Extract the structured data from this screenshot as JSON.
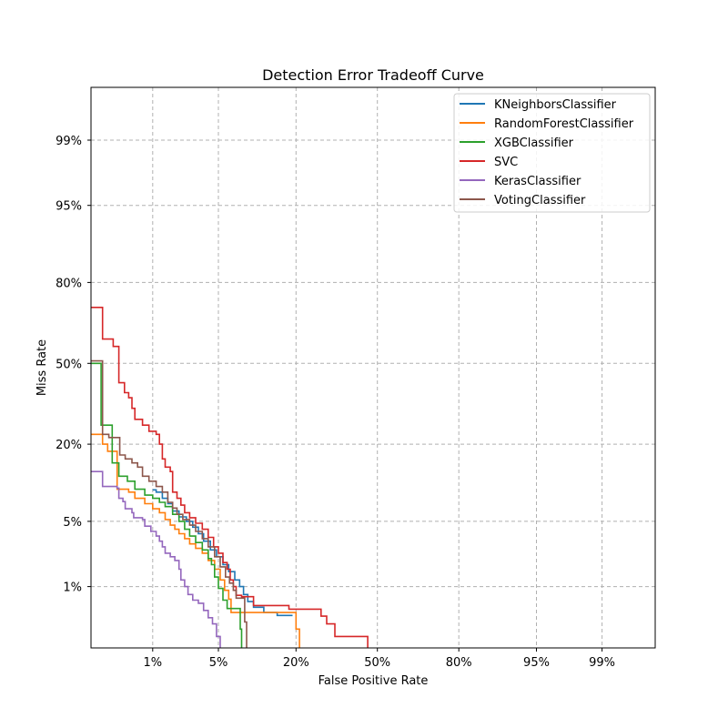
{
  "chart_data": {
    "type": "line",
    "title": "Detection Error Tradeoff Curve",
    "xlabel": "False Positive Rate",
    "ylabel": "Miss Rate",
    "x_scale": "probit",
    "y_scale": "probit",
    "xlim": [
      0.0015,
      0.998
    ],
    "ylim": [
      0.0015,
      0.998
    ],
    "grid": true,
    "legend_position": "top-right",
    "x_ticks": [
      {
        "value": 0.01,
        "label": "1%"
      },
      {
        "value": 0.05,
        "label": "5%"
      },
      {
        "value": 0.2,
        "label": "20%"
      },
      {
        "value": 0.5,
        "label": "50%"
      },
      {
        "value": 0.8,
        "label": "80%"
      },
      {
        "value": 0.95,
        "label": "95%"
      },
      {
        "value": 0.99,
        "label": "99%"
      }
    ],
    "y_ticks": [
      {
        "value": 0.01,
        "label": "1%"
      },
      {
        "value": 0.05,
        "label": "5%"
      },
      {
        "value": 0.2,
        "label": "20%"
      },
      {
        "value": 0.5,
        "label": "50%"
      },
      {
        "value": 0.8,
        "label": "80%"
      },
      {
        "value": 0.95,
        "label": "95%"
      },
      {
        "value": 0.99,
        "label": "99%"
      }
    ],
    "series": [
      {
        "name": "KNeighborsClassifier",
        "color": "#1f77b4",
        "points": [
          [
            0.01,
            0.094
          ],
          [
            0.011,
            0.09
          ],
          [
            0.013,
            0.08
          ],
          [
            0.015,
            0.072
          ],
          [
            0.017,
            0.062
          ],
          [
            0.02,
            0.055
          ],
          [
            0.024,
            0.05
          ],
          [
            0.028,
            0.044
          ],
          [
            0.032,
            0.038
          ],
          [
            0.036,
            0.032
          ],
          [
            0.042,
            0.026
          ],
          [
            0.048,
            0.022
          ],
          [
            0.055,
            0.018
          ],
          [
            0.062,
            0.015
          ],
          [
            0.07,
            0.012
          ],
          [
            0.077,
            0.01
          ],
          [
            0.083,
            0.008
          ],
          [
            0.09,
            0.0065
          ],
          [
            0.1,
            0.0055
          ],
          [
            0.12,
            0.0047
          ],
          [
            0.15,
            0.0043
          ],
          [
            0.19,
            0.0043
          ]
        ]
      },
      {
        "name": "RandomForestClassifier",
        "color": "#ff7f0e",
        "points": [
          [
            0.0015,
            0.23
          ],
          [
            0.002,
            0.23
          ],
          [
            0.0022,
            0.2
          ],
          [
            0.0026,
            0.18
          ],
          [
            0.0035,
            0.095
          ],
          [
            0.005,
            0.09
          ],
          [
            0.006,
            0.08
          ],
          [
            0.008,
            0.072
          ],
          [
            0.01,
            0.065
          ],
          [
            0.012,
            0.06
          ],
          [
            0.014,
            0.052
          ],
          [
            0.016,
            0.046
          ],
          [
            0.018,
            0.042
          ],
          [
            0.02,
            0.038
          ],
          [
            0.023,
            0.034
          ],
          [
            0.026,
            0.03
          ],
          [
            0.03,
            0.027
          ],
          [
            0.035,
            0.024
          ],
          [
            0.04,
            0.02
          ],
          [
            0.046,
            0.016
          ],
          [
            0.052,
            0.012
          ],
          [
            0.057,
            0.009
          ],
          [
            0.062,
            0.007
          ],
          [
            0.065,
            0.0047
          ],
          [
            0.1,
            0.0047
          ],
          [
            0.18,
            0.0047
          ],
          [
            0.2,
            0.0028
          ],
          [
            0.21,
            0.0015
          ]
        ]
      },
      {
        "name": "XGBClassifier",
        "color": "#2ca02c",
        "points": [
          [
            0.0015,
            0.5
          ],
          [
            0.002,
            0.5
          ],
          [
            0.0021,
            0.26
          ],
          [
            0.0028,
            0.26
          ],
          [
            0.003,
            0.15
          ],
          [
            0.0037,
            0.12
          ],
          [
            0.0048,
            0.11
          ],
          [
            0.006,
            0.095
          ],
          [
            0.008,
            0.085
          ],
          [
            0.01,
            0.08
          ],
          [
            0.012,
            0.074
          ],
          [
            0.014,
            0.068
          ],
          [
            0.017,
            0.058
          ],
          [
            0.02,
            0.05
          ],
          [
            0.023,
            0.042
          ],
          [
            0.026,
            0.036
          ],
          [
            0.03,
            0.031
          ],
          [
            0.035,
            0.026
          ],
          [
            0.04,
            0.021
          ],
          [
            0.043,
            0.018
          ],
          [
            0.046,
            0.013
          ],
          [
            0.05,
            0.0095
          ],
          [
            0.055,
            0.0068
          ],
          [
            0.06,
            0.0053
          ],
          [
            0.07,
            0.0053
          ],
          [
            0.075,
            0.0053
          ],
          [
            0.078,
            0.0028
          ],
          [
            0.08,
            0.0015
          ]
        ]
      },
      {
        "name": "SVC",
        "color": "#d62728",
        "points": [
          [
            0.0015,
            0.72
          ],
          [
            0.0021,
            0.72
          ],
          [
            0.0022,
            0.6
          ],
          [
            0.003,
            0.6
          ],
          [
            0.0031,
            0.57
          ],
          [
            0.0036,
            0.57
          ],
          [
            0.0037,
            0.42
          ],
          [
            0.0043,
            0.42
          ],
          [
            0.0044,
            0.38
          ],
          [
            0.005,
            0.36
          ],
          [
            0.0055,
            0.32
          ],
          [
            0.006,
            0.28
          ],
          [
            0.0075,
            0.26
          ],
          [
            0.009,
            0.24
          ],
          [
            0.011,
            0.23
          ],
          [
            0.012,
            0.2
          ],
          [
            0.013,
            0.16
          ],
          [
            0.014,
            0.14
          ],
          [
            0.016,
            0.13
          ],
          [
            0.017,
            0.09
          ],
          [
            0.019,
            0.08
          ],
          [
            0.021,
            0.07
          ],
          [
            0.023,
            0.06
          ],
          [
            0.026,
            0.054
          ],
          [
            0.03,
            0.048
          ],
          [
            0.035,
            0.042
          ],
          [
            0.04,
            0.035
          ],
          [
            0.045,
            0.028
          ],
          [
            0.05,
            0.024
          ],
          [
            0.055,
            0.019
          ],
          [
            0.06,
            0.016
          ],
          [
            0.064,
            0.012
          ],
          [
            0.068,
            0.01
          ],
          [
            0.072,
            0.0078
          ],
          [
            0.08,
            0.0075
          ],
          [
            0.1,
            0.0058
          ],
          [
            0.15,
            0.0058
          ],
          [
            0.18,
            0.0052
          ],
          [
            0.26,
            0.0052
          ],
          [
            0.28,
            0.0042
          ],
          [
            0.3,
            0.0033
          ],
          [
            0.32,
            0.0033
          ],
          [
            0.33,
            0.0022
          ],
          [
            0.45,
            0.0022
          ],
          [
            0.46,
            0.0015
          ]
        ]
      },
      {
        "name": "KerasClassifier",
        "color": "#9467bd",
        "points": [
          [
            0.0015,
            0.13
          ],
          [
            0.002,
            0.13
          ],
          [
            0.0022,
            0.1
          ],
          [
            0.0035,
            0.097
          ],
          [
            0.0037,
            0.08
          ],
          [
            0.0042,
            0.075
          ],
          [
            0.0045,
            0.065
          ],
          [
            0.0055,
            0.06
          ],
          [
            0.0058,
            0.054
          ],
          [
            0.0075,
            0.052
          ],
          [
            0.008,
            0.045
          ],
          [
            0.0095,
            0.04
          ],
          [
            0.011,
            0.036
          ],
          [
            0.012,
            0.032
          ],
          [
            0.013,
            0.028
          ],
          [
            0.014,
            0.024
          ],
          [
            0.016,
            0.022
          ],
          [
            0.018,
            0.02
          ],
          [
            0.02,
            0.016
          ],
          [
            0.021,
            0.012
          ],
          [
            0.023,
            0.01
          ],
          [
            0.025,
            0.008
          ],
          [
            0.028,
            0.0068
          ],
          [
            0.032,
            0.0062
          ],
          [
            0.036,
            0.005
          ],
          [
            0.04,
            0.004
          ],
          [
            0.044,
            0.0033
          ],
          [
            0.048,
            0.0022
          ],
          [
            0.052,
            0.0015
          ]
        ]
      },
      {
        "name": "VotingClassifier",
        "color": "#8c564b",
        "points": [
          [
            0.0015,
            0.51
          ],
          [
            0.0021,
            0.51
          ],
          [
            0.0022,
            0.23
          ],
          [
            0.0027,
            0.22
          ],
          [
            0.0037,
            0.22
          ],
          [
            0.0038,
            0.17
          ],
          [
            0.0045,
            0.16
          ],
          [
            0.0055,
            0.15
          ],
          [
            0.0065,
            0.14
          ],
          [
            0.0075,
            0.12
          ],
          [
            0.009,
            0.11
          ],
          [
            0.011,
            0.1
          ],
          [
            0.013,
            0.09
          ],
          [
            0.015,
            0.074
          ],
          [
            0.017,
            0.066
          ],
          [
            0.019,
            0.058
          ],
          [
            0.022,
            0.052
          ],
          [
            0.026,
            0.046
          ],
          [
            0.03,
            0.04
          ],
          [
            0.035,
            0.034
          ],
          [
            0.04,
            0.028
          ],
          [
            0.046,
            0.022
          ],
          [
            0.052,
            0.017
          ],
          [
            0.058,
            0.013
          ],
          [
            0.063,
            0.011
          ],
          [
            0.068,
            0.009
          ],
          [
            0.072,
            0.0072
          ],
          [
            0.082,
            0.0072
          ],
          [
            0.085,
            0.0035
          ],
          [
            0.088,
            0.0015
          ]
        ]
      }
    ]
  }
}
